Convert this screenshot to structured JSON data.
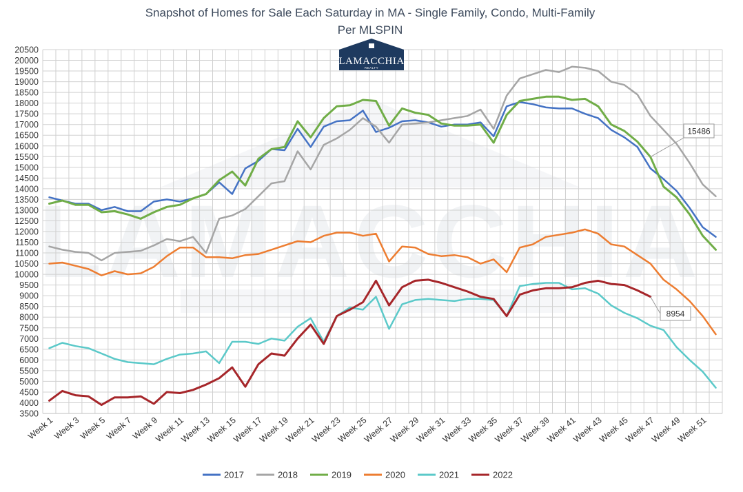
{
  "chart_data": {
    "type": "line",
    "title": "Snapshot of Homes for Sale Each Saturday in MA - Single Family, Condo, Multi-Family",
    "title_lines": [
      "Snapshot of Homes for Sale Each Saturday in MA - Single Family, Condo, Multi-Family",
      "Per MLSPIN"
    ],
    "logo": {
      "text": "LAMACCHIA",
      "subtext": "REALTY"
    },
    "watermark": "LAMACCHIA",
    "xlabel": "",
    "ylabel": "",
    "ylim": [
      3500,
      20500
    ],
    "ytick_step": 500,
    "grid": true,
    "legend_position": "bottom",
    "x_count": 52,
    "xtick_labels": [
      "Week 1",
      "Week 3",
      "Week 5",
      "Week 7",
      "Week 9",
      "Week 11",
      "Week 13",
      "Week 15",
      "Week 17",
      "Week 19",
      "Week 21",
      "Week 23",
      "Week 25",
      "Week 27",
      "Week 29",
      "Week 31",
      "Week 33",
      "Week 35",
      "Week 37",
      "Week 39",
      "Week 41",
      "Week 43",
      "Week 45",
      "Week 47",
      "Week 49",
      "Week 51"
    ],
    "series": [
      {
        "name": "2017",
        "color": "#4472c4",
        "width": 2.5,
        "values": [
          13600,
          13450,
          13300,
          13300,
          13000,
          13150,
          12950,
          12950,
          13400,
          13500,
          13400,
          13550,
          13750,
          14300,
          13750,
          14950,
          15300,
          15850,
          15800,
          16800,
          15950,
          16900,
          17150,
          17200,
          17650,
          16650,
          16850,
          17150,
          17200,
          17100,
          16900,
          17000,
          17000,
          17100,
          16450,
          17850,
          18050,
          17950,
          17800,
          17750,
          17750,
          17500,
          17300,
          16750,
          16400,
          15950,
          14950,
          14450,
          13900,
          13100,
          12200,
          11750
        ]
      },
      {
        "name": "2018",
        "color": "#a5a5a5",
        "width": 2.5,
        "values": [
          11300,
          11150,
          11050,
          11000,
          10650,
          11000,
          11050,
          11100,
          11350,
          11650,
          11550,
          11750,
          11000,
          12600,
          12750,
          13050,
          13650,
          14250,
          14350,
          15750,
          14900,
          16050,
          16350,
          16750,
          17300,
          16900,
          16150,
          17000,
          17050,
          17100,
          17200,
          17300,
          17400,
          17700,
          16800,
          18350,
          19150,
          19350,
          19550,
          19450,
          19700,
          19650,
          19500,
          19000,
          18850,
          18400,
          17400,
          16750,
          16100,
          15200,
          14200,
          13650
        ]
      },
      {
        "name": "2019",
        "color": "#70ad47",
        "width": 3,
        "values": [
          13300,
          13450,
          13250,
          13250,
          12900,
          12950,
          12800,
          12600,
          12900,
          13150,
          13250,
          13550,
          13750,
          14400,
          14800,
          14150,
          15400,
          15850,
          15950,
          17150,
          16400,
          17300,
          17850,
          17900,
          18150,
          18100,
          16950,
          17750,
          17550,
          17450,
          17050,
          16950,
          16950,
          17000,
          16150,
          17450,
          18100,
          18200,
          18300,
          18300,
          18150,
          18200,
          17850,
          17000,
          16700,
          16200,
          15486,
          14100,
          13600,
          12800,
          11800,
          11150
        ]
      },
      {
        "name": "2020",
        "color": "#ed7d31",
        "width": 2.5,
        "values": [
          10500,
          10550,
          10400,
          10250,
          9950,
          10150,
          10000,
          10050,
          10350,
          10850,
          11250,
          11250,
          10800,
          10800,
          10750,
          10900,
          10950,
          11150,
          11350,
          11550,
          11500,
          11800,
          11950,
          11950,
          11800,
          11900,
          10600,
          11300,
          11250,
          10950,
          10850,
          10900,
          10800,
          10500,
          10700,
          10100,
          11250,
          11400,
          11750,
          11850,
          11950,
          12100,
          11900,
          11400,
          11300,
          10900,
          10500,
          9750,
          9300,
          8750,
          8050,
          7200
        ]
      },
      {
        "name": "2021",
        "color": "#5bc9c9",
        "width": 2.5,
        "values": [
          6550,
          6800,
          6650,
          6550,
          6300,
          6050,
          5900,
          5850,
          5800,
          6050,
          6250,
          6300,
          6400,
          5850,
          6850,
          6850,
          6750,
          7000,
          6900,
          7550,
          7950,
          6850,
          8050,
          8450,
          8350,
          8950,
          7450,
          8600,
          8800,
          8850,
          8800,
          8750,
          8850,
          8850,
          8800,
          8050,
          9450,
          9550,
          9600,
          9600,
          9300,
          9350,
          9100,
          8550,
          8200,
          7950,
          7600,
          7400,
          6600,
          6000,
          5450,
          4700
        ]
      },
      {
        "name": "2022",
        "color": "#a6262a",
        "width": 3,
        "values": [
          4100,
          4550,
          4350,
          4300,
          3900,
          4250,
          4250,
          4300,
          3950,
          4500,
          4450,
          4600,
          4850,
          5150,
          5650,
          4750,
          5800,
          6300,
          6200,
          7000,
          7650,
          6750,
          8050,
          8350,
          8700,
          9700,
          8550,
          9400,
          9700,
          9750,
          9600,
          9400,
          9200,
          8950,
          8850,
          8050,
          9050,
          9250,
          9350,
          9350,
          9400,
          9600,
          9700,
          9550,
          9500,
          9250,
          8954
        ]
      }
    ],
    "callouts": [
      {
        "text": "15486",
        "series": "2019",
        "index": 46
      },
      {
        "text": "8954",
        "series": "2022",
        "index": 46
      }
    ]
  }
}
